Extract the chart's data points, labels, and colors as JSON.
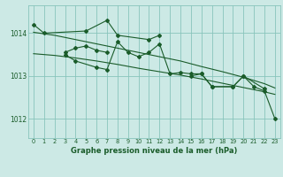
{
  "background_color": "#cce9e5",
  "grid_color": "#88c4bc",
  "line_color": "#1a5c2a",
  "title": "Graphe pression niveau de la mer (hPa)",
  "ylabel_ticks": [
    1012,
    1013,
    1014
  ],
  "xlim": [
    -0.5,
    23.5
  ],
  "ylim": [
    1011.55,
    1014.65
  ],
  "series1_x": [
    0,
    1,
    5,
    7,
    8,
    11,
    12
  ],
  "series1_y": [
    1014.2,
    1014.0,
    1014.05,
    1014.3,
    1013.95,
    1013.85,
    1013.95
  ],
  "series2_x": [
    3,
    4,
    5,
    6,
    7
  ],
  "series2_y": [
    1013.55,
    1013.65,
    1013.7,
    1013.6,
    1013.55
  ],
  "series3_x": [
    3,
    4,
    6,
    7,
    8,
    9,
    10,
    11,
    12,
    13,
    14,
    15,
    16,
    17,
    19,
    20,
    22
  ],
  "series3_y": [
    1013.5,
    1013.35,
    1013.2,
    1013.15,
    1013.8,
    1013.55,
    1013.45,
    1013.55,
    1013.75,
    1013.05,
    1013.08,
    1013.05,
    1013.05,
    1012.75,
    1012.75,
    1013.0,
    1012.7
  ],
  "series4_x": [
    15,
    16,
    17,
    19,
    20,
    21,
    22,
    23
  ],
  "series4_y": [
    1013.0,
    1013.05,
    1012.75,
    1012.75,
    1013.0,
    1012.75,
    1012.65,
    1012.0
  ],
  "smooth1_x": [
    0,
    2,
    4,
    6,
    8,
    10,
    12,
    14,
    16,
    18,
    20,
    22,
    23
  ],
  "smooth1_y": [
    1013.52,
    1013.48,
    1013.42,
    1013.35,
    1013.27,
    1013.18,
    1013.1,
    1013.02,
    1012.93,
    1012.83,
    1012.73,
    1012.63,
    1012.57
  ],
  "smooth2_x": [
    0,
    2,
    4,
    6,
    8,
    10,
    12,
    14,
    16,
    18,
    20,
    22,
    23
  ],
  "smooth2_y": [
    1014.02,
    1013.95,
    1013.85,
    1013.75,
    1013.65,
    1013.55,
    1013.45,
    1013.35,
    1013.22,
    1013.1,
    1012.97,
    1012.82,
    1012.72
  ]
}
